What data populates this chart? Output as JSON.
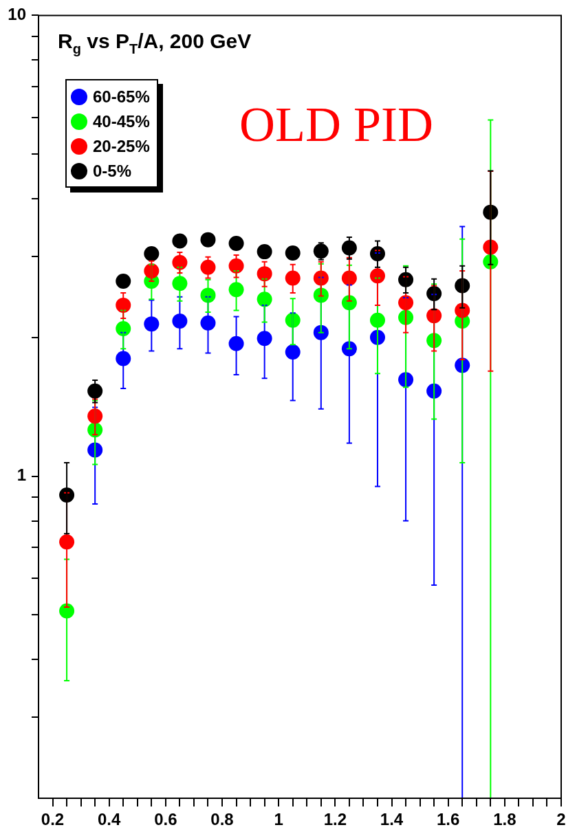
{
  "chart_data": {
    "type": "scatter",
    "title": "R$_{g}$ vs P$_{T}$/A, 200 GeV",
    "annotations": [
      "OLD PID"
    ],
    "x": [
      0.25,
      0.35,
      0.45,
      0.55,
      0.65,
      0.75,
      0.85,
      0.95,
      1.05,
      1.15,
      1.25,
      1.35,
      1.45,
      1.55,
      1.65,
      1.75
    ],
    "series": [
      {
        "name": "60-65%",
        "color": "#0000ff",
        "values": [
          null,
          1.14,
          1.8,
          2.14,
          2.17,
          2.15,
          1.94,
          1.99,
          1.86,
          2.05,
          1.89,
          2.0,
          1.62,
          1.53,
          1.74,
          null
        ],
        "errors": [
          null,
          0.27,
          0.25,
          0.27,
          0.28,
          0.3,
          0.28,
          0.36,
          0.4,
          0.65,
          0.71,
          1.05,
          0.82,
          0.95,
          [
            0.2,
            3.48
          ],
          null
        ]
      },
      {
        "name": "40-45%",
        "color": "#00ff00",
        "values": [
          0.51,
          1.26,
          2.09,
          2.65,
          2.62,
          2.47,
          2.54,
          2.42,
          2.18,
          2.47,
          2.38,
          2.18,
          2.21,
          1.97,
          2.17,
          2.92
        ],
        "errors": [
          0.15,
          0.2,
          0.2,
          0.23,
          0.22,
          0.2,
          0.25,
          0.26,
          0.25,
          0.42,
          0.49,
          0.51,
          0.65,
          0.64,
          1.1,
          [
            0.2,
            5.93
          ]
        ]
      },
      {
        "name": "20-25%",
        "color": "#ff0000",
        "values": [
          0.72,
          1.35,
          2.35,
          2.79,
          2.91,
          2.84,
          2.86,
          2.75,
          2.69,
          2.69,
          2.69,
          2.72,
          2.38,
          2.23,
          2.29,
          3.14
        ],
        "errors": [
          0.2,
          0.12,
          0.15,
          0.14,
          0.15,
          0.15,
          0.16,
          0.17,
          0.19,
          0.23,
          0.29,
          0.37,
          0.33,
          0.36,
          0.5,
          1.45
        ]
      },
      {
        "name": "0-5%",
        "color": "#000000",
        "values": [
          0.91,
          1.53,
          2.65,
          3.04,
          3.24,
          3.26,
          3.2,
          3.07,
          3.05,
          3.08,
          3.13,
          3.04,
          2.67,
          2.49,
          2.59,
          3.74
        ],
        "errors": [
          0.16,
          0.085,
          null,
          null,
          null,
          null,
          null,
          null,
          null,
          0.13,
          0.17,
          0.2,
          0.17,
          0.19,
          0.27,
          0.86
        ]
      }
    ],
    "log": "y",
    "xlim": [
      0.15,
      2.0
    ],
    "xticks": [
      0.2,
      {
        "value": 0.25,
        "label": null
      },
      {
        "value": 0.3,
        "label": null
      },
      {
        "value": 0.35,
        "label": null
      },
      0.4,
      {
        "value": 0.45,
        "label": null
      },
      {
        "value": 0.5,
        "label": null
      },
      {
        "value": 0.55,
        "label": null
      },
      0.6,
      {
        "value": 0.65,
        "label": null
      },
      {
        "value": 0.7,
        "label": null
      },
      {
        "value": 0.75,
        "label": null
      },
      0.8,
      {
        "value": 0.85,
        "label": null
      },
      {
        "value": 0.9,
        "label": null
      },
      {
        "value": 0.95,
        "label": null
      },
      1,
      {
        "value": 1.05,
        "label": null
      },
      {
        "value": 1.1,
        "label": null
      },
      {
        "value": 1.15,
        "label": null
      },
      1.2,
      {
        "value": 1.25,
        "label": null
      },
      {
        "value": 1.3,
        "label": null
      },
      {
        "value": 1.35,
        "label": null
      },
      1.4,
      {
        "value": 1.45,
        "label": null
      },
      {
        "value": 1.5,
        "label": null
      },
      {
        "value": 1.55,
        "label": null
      },
      1.6,
      {
        "value": 1.65,
        "label": null
      },
      {
        "value": 1.7,
        "label": null
      },
      {
        "value": 1.75,
        "label": null
      },
      1.8,
      {
        "value": 1.85,
        "label": null
      },
      {
        "value": 1.9,
        "label": null
      },
      {
        "value": 1.95,
        "label": null
      },
      2
    ],
    "ylim": [
      0.2,
      10
    ],
    "yticks": [
      {
        "value": 0.3,
        "label": null
      },
      {
        "value": 0.4,
        "label": null
      },
      {
        "value": 0.5,
        "label": null
      },
      {
        "value": 0.6,
        "label": null
      },
      {
        "value": 0.7,
        "label": null
      },
      {
        "value": 0.8,
        "label": null
      },
      {
        "value": 0.9,
        "label": null
      },
      1,
      {
        "value": 2,
        "label": null
      },
      {
        "value": 3,
        "label": null
      },
      {
        "value": 4,
        "label": null
      },
      {
        "value": 5,
        "label": null
      },
      {
        "value": 6,
        "label": null
      },
      {
        "value": 7,
        "label": null
      },
      {
        "value": 8,
        "label": null
      },
      {
        "value": 9,
        "label": null
      },
      10
    ],
    "grid": false,
    "legend": "top left",
    "marker": "circle"
  }
}
